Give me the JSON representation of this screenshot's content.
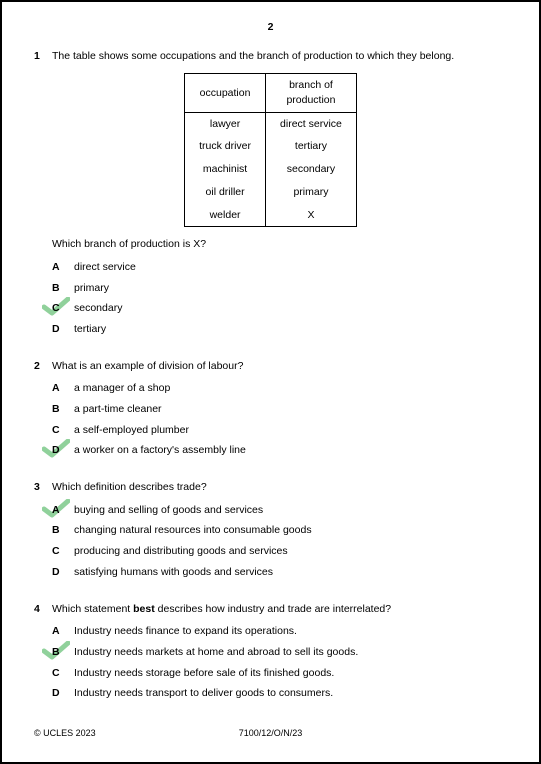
{
  "page_number": "2",
  "tick_color": "#7dc98a",
  "table": {
    "headers": [
      "occupation",
      "branch of\nproduction"
    ],
    "rows": [
      [
        "lawyer",
        "direct service"
      ],
      [
        "truck driver",
        "tertiary"
      ],
      [
        "machinist",
        "secondary"
      ],
      [
        "oil driller",
        "primary"
      ],
      [
        "welder",
        "X"
      ]
    ]
  },
  "questions": [
    {
      "num": "1",
      "stem": "The table shows some occupations and the branch of production to which they belong.",
      "sub_stem": "Which branch of production is X?",
      "has_table": true,
      "options": [
        {
          "letter": "A",
          "text": "direct service",
          "ticked": false
        },
        {
          "letter": "B",
          "text": "primary",
          "ticked": false
        },
        {
          "letter": "C",
          "text": "secondary",
          "ticked": true
        },
        {
          "letter": "D",
          "text": "tertiary",
          "ticked": false
        }
      ]
    },
    {
      "num": "2",
      "stem": "What is an example of division of labour?",
      "options": [
        {
          "letter": "A",
          "text": "a manager of a shop",
          "ticked": false
        },
        {
          "letter": "B",
          "text": "a part-time cleaner",
          "ticked": false
        },
        {
          "letter": "C",
          "text": "a self-employed plumber",
          "ticked": false
        },
        {
          "letter": "D",
          "text": "a worker on a factory's assembly line",
          "ticked": true
        }
      ]
    },
    {
      "num": "3",
      "stem": "Which definition describes trade?",
      "options": [
        {
          "letter": "A",
          "text": "buying and selling of goods and services",
          "ticked": true
        },
        {
          "letter": "B",
          "text": "changing natural resources into consumable goods",
          "ticked": false
        },
        {
          "letter": "C",
          "text": "producing and distributing goods and services",
          "ticked": false
        },
        {
          "letter": "D",
          "text": "satisfying humans with goods and services",
          "ticked": false
        }
      ]
    },
    {
      "num": "4",
      "stem_html": "Which statement <b>best</b> describes how industry and trade are interrelated?",
      "options": [
        {
          "letter": "A",
          "text": "Industry needs finance to expand its operations.",
          "ticked": false
        },
        {
          "letter": "B",
          "text": "Industry needs markets at home and abroad to sell its goods.",
          "ticked": true
        },
        {
          "letter": "C",
          "text": "Industry needs storage before sale of its finished goods.",
          "ticked": false
        },
        {
          "letter": "D",
          "text": "Industry needs transport to deliver goods to consumers.",
          "ticked": false
        }
      ]
    }
  ],
  "footer": {
    "left": "© UCLES 2023",
    "center": "7100/12/O/N/23"
  }
}
